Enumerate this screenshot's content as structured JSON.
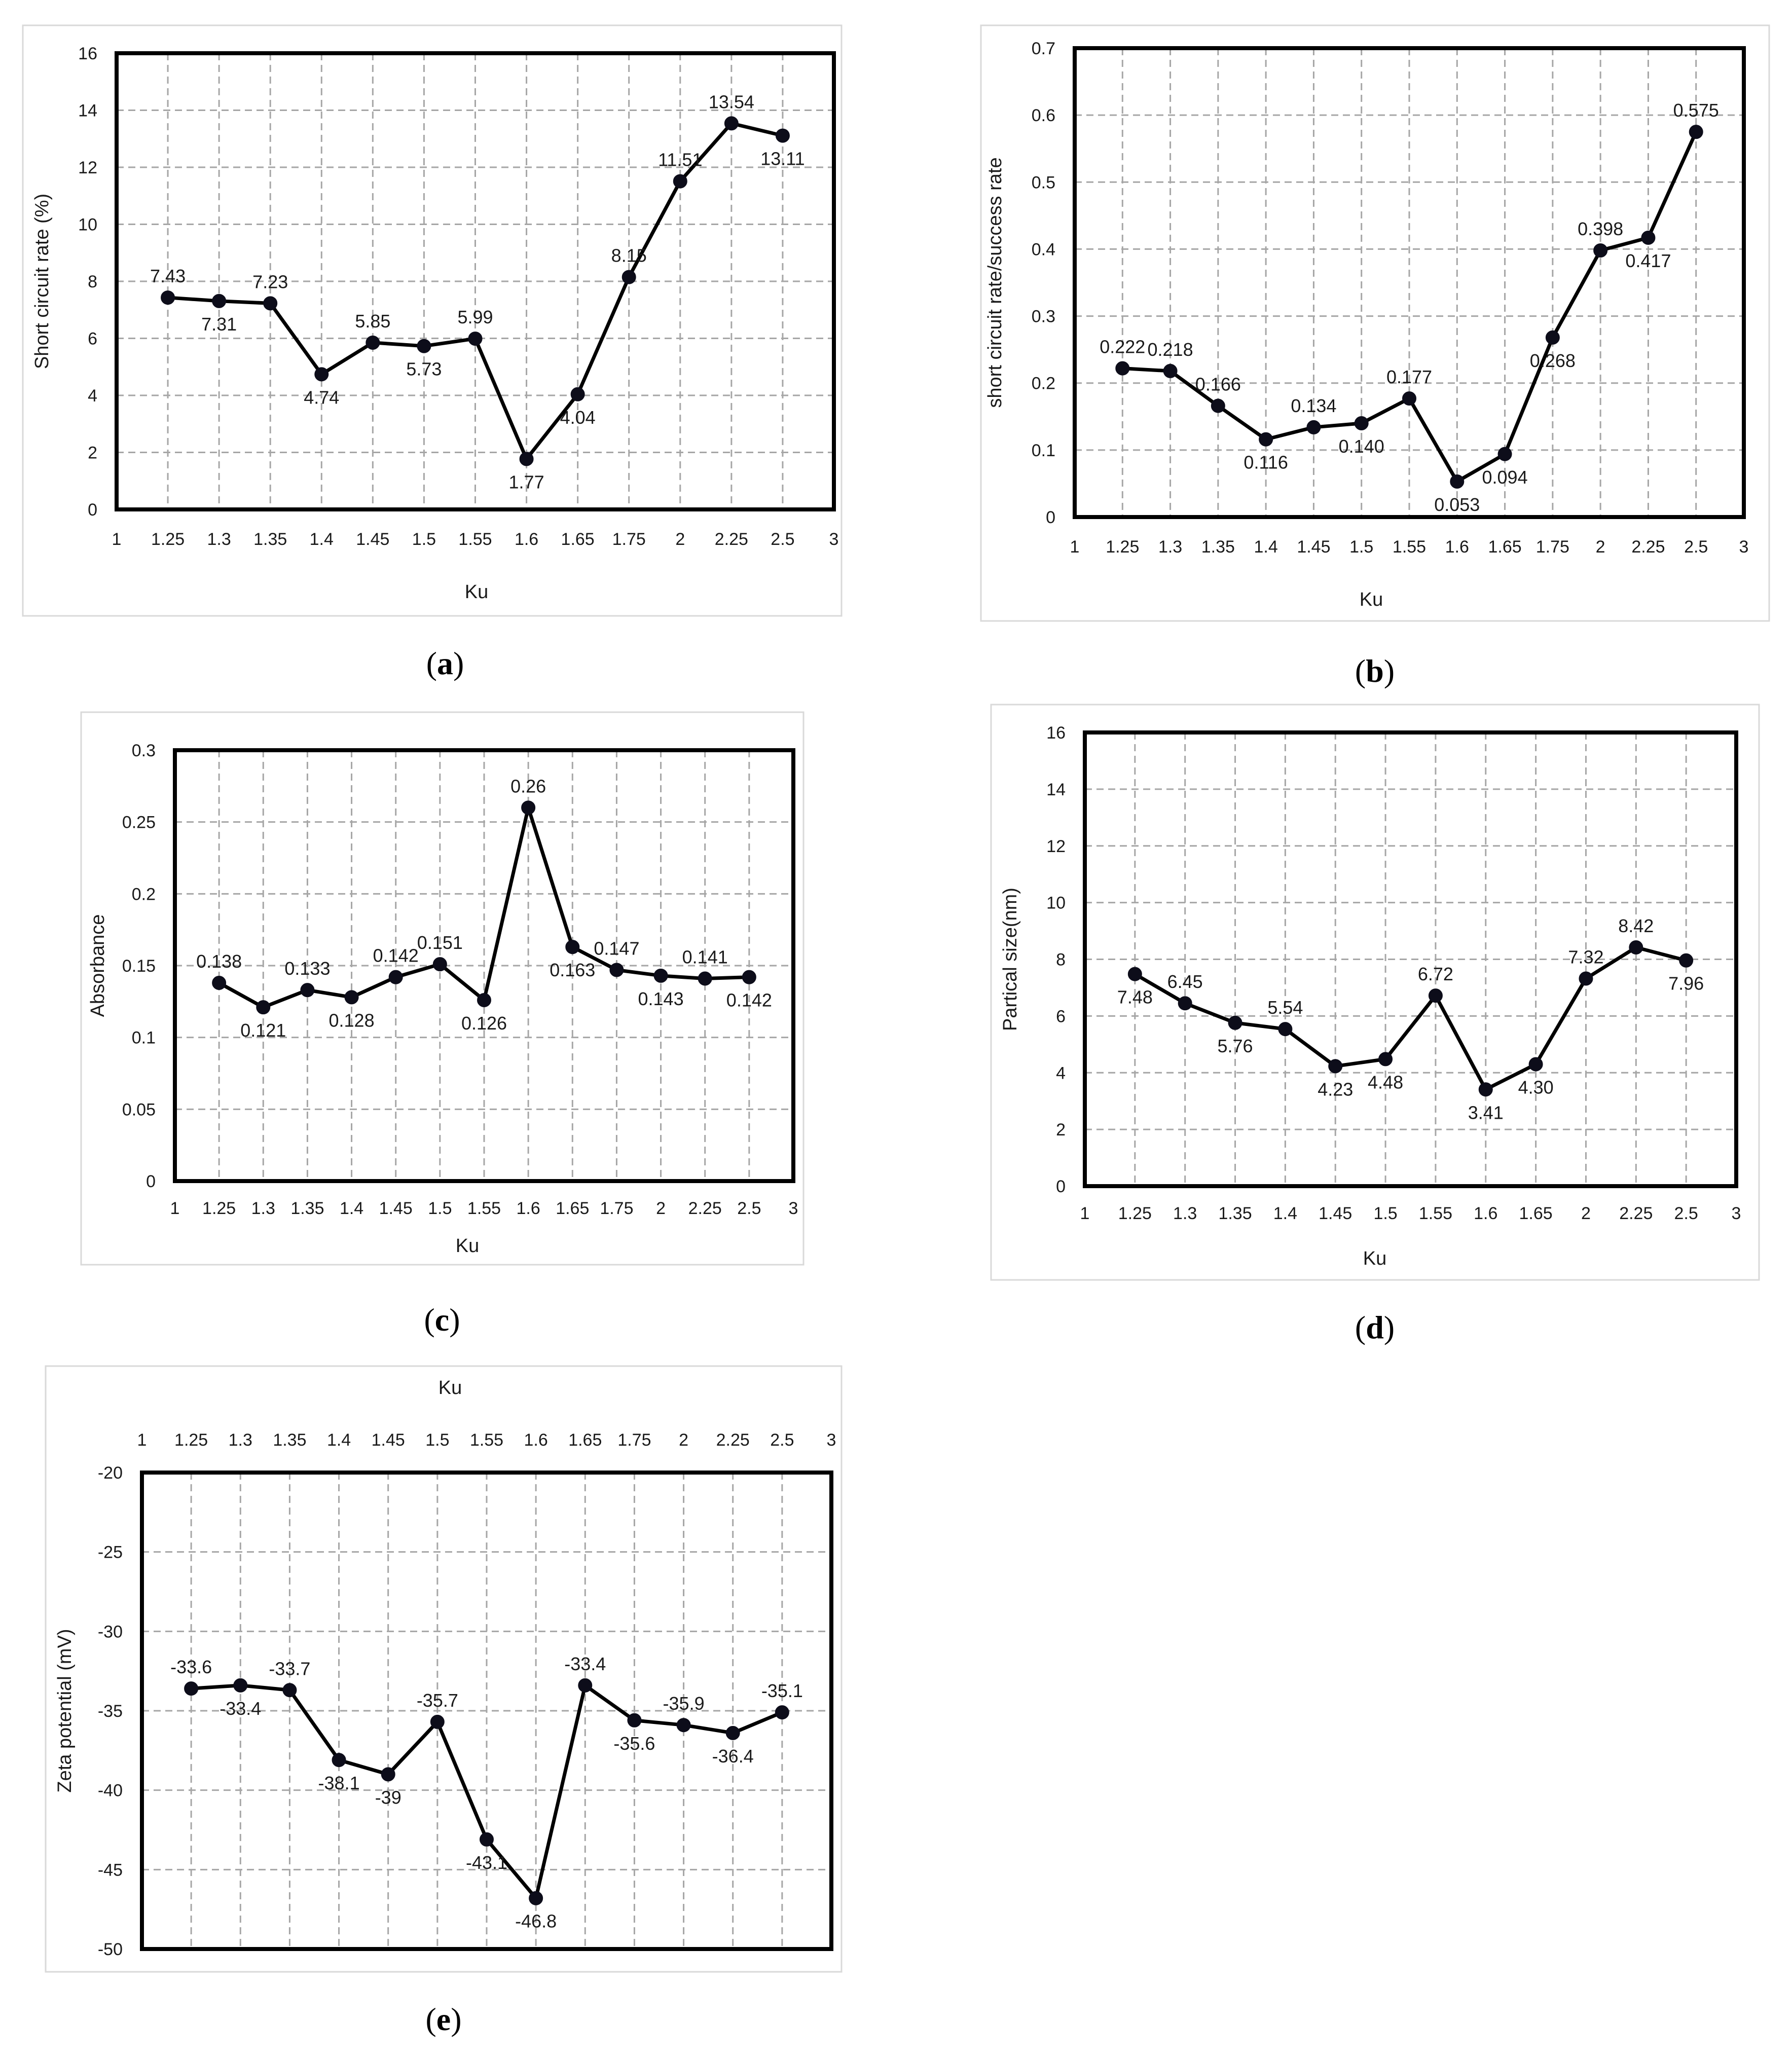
{
  "chart_data": [
    {
      "panel": "(a)",
      "panel_letter": "a",
      "type": "line",
      "xlabel": "Ku",
      "ylabel": "Short circuit rate (%)",
      "x_ticks": [
        "1",
        "1.25",
        "1.3",
        "1.35",
        "1.4",
        "1.45",
        "1.5",
        "1.55",
        "1.6",
        "1.65",
        "1.75",
        "2",
        "2.25",
        "2.5",
        "3"
      ],
      "y_ticks": [
        "0",
        "2",
        "4",
        "6",
        "8",
        "10",
        "12",
        "14",
        "16"
      ],
      "ylim": [
        0,
        16
      ],
      "categories": [
        "1.25",
        "1.3",
        "1.35",
        "1.4",
        "1.45",
        "1.5",
        "1.55",
        "1.6",
        "1.65",
        "1.75",
        "2",
        "2.25",
        "2.5"
      ],
      "values": [
        7.43,
        7.31,
        7.23,
        4.74,
        5.85,
        5.73,
        5.99,
        1.77,
        4.04,
        8.15,
        11.51,
        13.54,
        13.11
      ],
      "labels": [
        "7.43",
        "7.31",
        "7.23",
        "4.74",
        "5.85",
        "5.73",
        "5.99",
        "1.77",
        "4.04",
        "8.15",
        "11.51",
        "13.54",
        "13.11"
      ]
    },
    {
      "panel": "(b)",
      "panel_letter": "b",
      "type": "line",
      "xlabel": "Ku",
      "ylabel": "short circuit rate/success rate",
      "x_ticks": [
        "1",
        "1.25",
        "1.3",
        "1.35",
        "1.4",
        "1.45",
        "1.5",
        "1.55",
        "1.6",
        "1.65",
        "1.75",
        "2",
        "2.25",
        "2.5",
        "3"
      ],
      "y_ticks": [
        "0",
        "0.1",
        "0.2",
        "0.3",
        "0.4",
        "0.5",
        "0.6",
        "0.7"
      ],
      "ylim": [
        0,
        0.7
      ],
      "categories": [
        "1.25",
        "1.3",
        "1.35",
        "1.4",
        "1.45",
        "1.5",
        "1.55",
        "1.6",
        "1.65",
        "1.75",
        "2",
        "2.25",
        "2.5"
      ],
      "values": [
        0.222,
        0.218,
        0.166,
        0.116,
        0.134,
        0.14,
        0.177,
        0.053,
        0.094,
        0.268,
        0.398,
        0.417,
        0.575
      ],
      "labels": [
        "0.222",
        "0.218",
        "0.166",
        "0.116",
        "0.134",
        "0.140",
        "0.177",
        "0.053",
        "0.094",
        "0.268",
        "0.398",
        "0.417",
        "0.575"
      ]
    },
    {
      "panel": "(c)",
      "panel_letter": "c",
      "type": "line",
      "xlabel": "Ku",
      "ylabel": "Absorbance",
      "x_ticks": [
        "1",
        "1.25",
        "1.3",
        "1.35",
        "1.4",
        "1.45",
        "1.5",
        "1.55",
        "1.6",
        "1.65",
        "1.75",
        "2",
        "2.25",
        "2.5",
        "3"
      ],
      "y_ticks": [
        "0",
        "0.05",
        "0.1",
        "0.15",
        "0.2",
        "0.25",
        "0.3"
      ],
      "ylim": [
        0,
        0.3
      ],
      "categories": [
        "1.25",
        "1.3",
        "1.35",
        "1.4",
        "1.45",
        "1.5",
        "1.55",
        "1.6",
        "1.65",
        "1.75",
        "2",
        "2.25",
        "2.5"
      ],
      "values": [
        0.138,
        0.121,
        0.133,
        0.128,
        0.142,
        0.151,
        0.126,
        0.26,
        0.163,
        0.147,
        0.143,
        0.141,
        0.142
      ],
      "labels": [
        "0.138",
        "0.121",
        "0.133",
        "0.128",
        "0.142",
        "0.151",
        "0.126",
        "0.26",
        "0.163",
        "0.147",
        "0.143",
        "0.141",
        "0.142"
      ]
    },
    {
      "panel": "(d)",
      "panel_letter": "d",
      "type": "line",
      "xlabel": "Ku",
      "ylabel": "Partical size(nm)",
      "x_ticks": [
        "1",
        "1.25",
        "1.3",
        "1.35",
        "1.4",
        "1.45",
        "1.5",
        "1.55",
        "1.6",
        "1.65",
        "2",
        "2.25",
        "2.5",
        "3"
      ],
      "y_ticks": [
        "0",
        "2",
        "4",
        "6",
        "8",
        "10",
        "12",
        "14",
        "16"
      ],
      "ylim": [
        0,
        16
      ],
      "categories": [
        "1.25",
        "1.3",
        "1.35",
        "1.4",
        "1.45",
        "1.5",
        "1.55",
        "1.6",
        "1.65",
        "2",
        "2.25",
        "2.5"
      ],
      "values": [
        7.48,
        6.45,
        5.76,
        5.54,
        4.23,
        4.48,
        6.72,
        3.41,
        4.3,
        7.32,
        8.42,
        7.96
      ],
      "labels": [
        "7.48",
        "6.45",
        "5.76",
        "5.54",
        "4.23",
        "4.48",
        "6.72",
        "3.41",
        "4.30",
        "7.32",
        "8.42",
        "7.96"
      ]
    },
    {
      "panel": "(e)",
      "panel_letter": "e",
      "type": "line",
      "xlabel": "Ku",
      "ylabel": "Zeta potential (mV)",
      "x_axis_position": "top",
      "x_ticks": [
        "1",
        "1.25",
        "1.3",
        "1.35",
        "1.4",
        "1.45",
        "1.5",
        "1.55",
        "1.6",
        "1.65",
        "1.75",
        "2",
        "2.25",
        "2.5",
        "3"
      ],
      "y_ticks": [
        "-20",
        "-25",
        "-30",
        "-35",
        "-40",
        "-45",
        "-50"
      ],
      "ylim": [
        -50,
        -20
      ],
      "categories": [
        "1.25",
        "1.3",
        "1.35",
        "1.4",
        "1.45",
        "1.5",
        "1.55",
        "1.6",
        "1.65",
        "1.75",
        "2",
        "2.25",
        "2.5"
      ],
      "values": [
        -33.6,
        -33.4,
        -33.7,
        -38.1,
        -39,
        -35.7,
        -43.1,
        -46.8,
        -33.4,
        -35.6,
        -35.9,
        -36.4,
        -35.1
      ],
      "labels": [
        "-33.6",
        "-33.4",
        "-33.7",
        "-38.1",
        "-39",
        "-35.7",
        "-43.1",
        "-46.8",
        "-33.4",
        "-35.6",
        "-35.9",
        "-36.4",
        "-35.1"
      ]
    }
  ]
}
